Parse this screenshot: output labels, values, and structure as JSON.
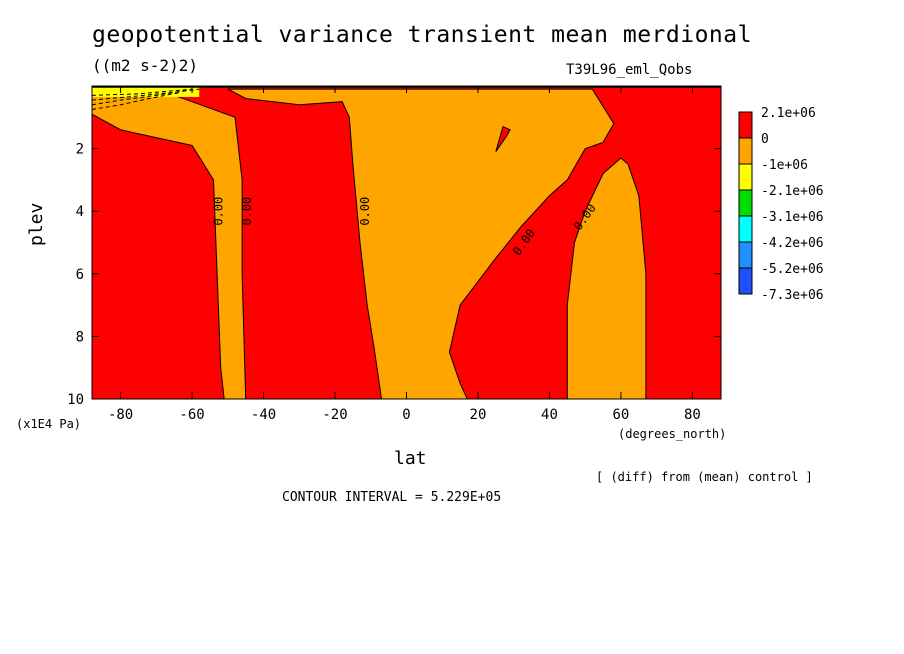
{
  "header": {
    "title": "geopotential variance transient mean merdional",
    "units": "((m2 s-2)2)",
    "run": "T39L96_eml_Qobs"
  },
  "footer": {
    "diff_note": "[ (diff) from (mean) control ]",
    "contour_interval": "CONTOUR INTERVAL = 5.229E+05"
  },
  "chart_data": {
    "type": "contour",
    "xlabel": "lat",
    "xunits": "(degrees_north)",
    "ylabel": "plev",
    "yunits": "(x1E4 Pa)",
    "xlim": [
      -88,
      88
    ],
    "ylim": [
      10,
      0
    ],
    "x_ticks": [
      -80,
      -60,
      -40,
      -20,
      0,
      20,
      40,
      60,
      80
    ],
    "y_ticks": [
      2,
      4,
      6,
      8,
      10
    ],
    "colorbar": [
      {
        "label": "2.1e+06",
        "color": "#ff0000"
      },
      {
        "label": "0",
        "color": "#ffa500"
      },
      {
        "label": "-1e+06",
        "color": "#ffff00"
      },
      {
        "label": "-2.1e+06",
        "color": "#00dd00"
      },
      {
        "label": "-3.1e+06",
        "color": "#00ffff"
      },
      {
        "label": "-4.2e+06",
        "color": "#1e90ff"
      },
      {
        "label": "-5.2e+06",
        "color": "#1e50ff"
      },
      {
        "label": "-7.3e+06",
        "color": ""
      }
    ],
    "contour_labels": [
      "0.00",
      "0.00",
      "0.00",
      "0.00",
      "0.00"
    ],
    "regions": [
      {
        "sign": "negative",
        "color": "#ffa500",
        "points": [
          [
            -88,
            0.9
          ],
          [
            -80,
            1.4
          ],
          [
            -60,
            1.9
          ],
          [
            -54,
            3.0
          ],
          [
            -53,
            6
          ],
          [
            -52,
            9
          ],
          [
            -51,
            10
          ],
          [
            -45,
            10
          ],
          [
            -46,
            6
          ],
          [
            -46,
            3
          ],
          [
            -48,
            1.0
          ],
          [
            -60,
            0.5
          ],
          [
            -70,
            0.1
          ],
          [
            -88,
            0.1
          ]
        ]
      },
      {
        "sign": "negative",
        "color": "#ffa500",
        "points": [
          [
            -50,
            0.1
          ],
          [
            -45,
            0.4
          ],
          [
            -30,
            0.6
          ],
          [
            -18,
            0.5
          ],
          [
            -16,
            1.0
          ],
          [
            -15,
            2.5
          ],
          [
            -13,
            5
          ],
          [
            -11,
            7
          ],
          [
            -9,
            8.4
          ],
          [
            -7,
            10
          ],
          [
            17,
            10
          ],
          [
            15,
            9.5
          ],
          [
            12,
            8.5
          ],
          [
            15,
            7
          ],
          [
            25,
            5.5
          ],
          [
            32,
            4.5
          ],
          [
            40,
            3.5
          ],
          [
            45,
            3.0
          ],
          [
            50,
            2.0
          ],
          [
            55,
            1.8
          ],
          [
            58,
            1.2
          ],
          [
            52,
            0.1
          ]
        ]
      },
      {
        "sign": "negative",
        "color": "#ffa500",
        "points": [
          [
            45,
            10
          ],
          [
            45,
            7
          ],
          [
            47,
            5
          ],
          [
            50,
            4
          ],
          [
            55,
            2.8
          ],
          [
            60,
            2.3
          ],
          [
            62,
            2.5
          ],
          [
            65,
            3.5
          ],
          [
            67,
            6
          ],
          [
            67,
            10
          ]
        ]
      },
      {
        "sign": "positive",
        "color": "#ff0000",
        "points": [
          [
            25,
            2.1
          ],
          [
            28,
            1.6
          ],
          [
            29,
            1.4
          ],
          [
            27,
            1.3
          ],
          [
            26,
            1.7
          ]
        ]
      }
    ]
  }
}
